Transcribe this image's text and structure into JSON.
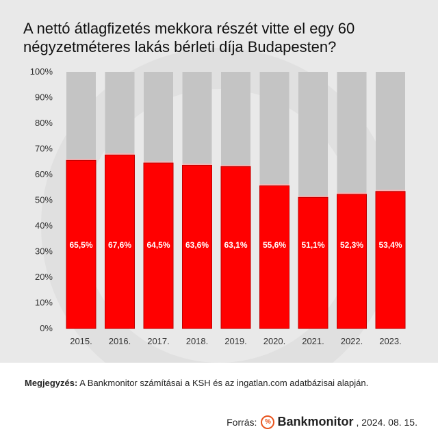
{
  "chart_data": {
    "type": "bar",
    "title": "A nettó átlagfizetés mekkora részét vitte el egy 60 négyzetméteres lakás bérleti díja Budapesten?",
    "categories": [
      "2015.",
      "2016.",
      "2017.",
      "2018.",
      "2019.",
      "2020.",
      "2021.",
      "2022.",
      "2023."
    ],
    "series": [
      {
        "values": [
          65.5,
          67.6,
          64.5,
          63.6,
          63.1,
          55.6,
          51.1,
          52.3,
          53.4
        ]
      }
    ],
    "data_labels": [
      "65,5%",
      "67,6%",
      "64,5%",
      "63,6%",
      "63,1%",
      "55,6%",
      "51,1%",
      "52,3%",
      "53,4%"
    ],
    "yticks": [
      "0%",
      "10%",
      "20%",
      "30%",
      "40%",
      "50%",
      "60%",
      "70%",
      "80%",
      "90%",
      "100%"
    ],
    "ylim": [
      0,
      100
    ],
    "stacked_remainder_to": 100,
    "colors": {
      "bar": "#ff0000",
      "bar_edge": "#c00000",
      "remainder": "#c4c4c4",
      "label": "#ffffff"
    },
    "grid": false
  },
  "footer": {
    "note_label": "Megjegyzés:",
    "note_text": " A Bankmonitor számításai a KSH és az ingatlan.com adatbázisai alapján.",
    "source_label": "Forrás:",
    "brand_icon": "%",
    "brand_name": "Bankmonitor",
    "date": ", 2024. 08. 15."
  }
}
